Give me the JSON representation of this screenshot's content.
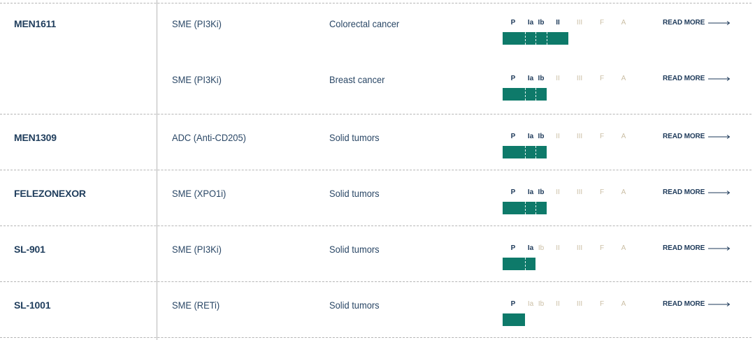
{
  "phases": [
    "P",
    "Ia",
    "Ib",
    "II",
    "III",
    "F",
    "A"
  ],
  "read_more_label": "READ MORE",
  "colors": {
    "progress_bar": "#0e7a6a",
    "phase_active": "#1e3a5a",
    "phase_inactive": "#cbbfa5",
    "text": "#1f3d5c"
  },
  "drugs": [
    {
      "name": "MEN1611",
      "indications": [
        {
          "modality": "SME (PI3Ki)",
          "indication": "Colorectal cancer",
          "phase_reached": 4
        },
        {
          "modality": "SME (PI3Ki)",
          "indication": "Breast cancer",
          "phase_reached": 3
        }
      ]
    },
    {
      "name": "MEN1309",
      "indications": [
        {
          "modality": "ADC (Anti-CD205)",
          "indication": "Solid tumors",
          "phase_reached": 3
        }
      ]
    },
    {
      "name": "FELEZONEXOR",
      "indications": [
        {
          "modality": "SME (XPO1i)",
          "indication": "Solid tumors",
          "phase_reached": 3
        }
      ]
    },
    {
      "name": "SL-901",
      "indications": [
        {
          "modality": "SME (PI3Ki)",
          "indication": "Solid tumors",
          "phase_reached": 2
        }
      ]
    },
    {
      "name": "SL-1001",
      "indications": [
        {
          "modality": "SME (RETi)",
          "indication": "Solid tumors",
          "phase_reached": 1
        }
      ]
    }
  ]
}
